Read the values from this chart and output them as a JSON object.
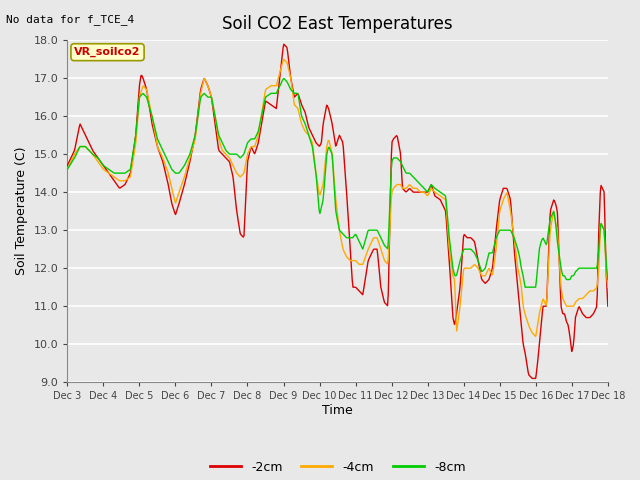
{
  "title": "Soil CO2 East Temperatures",
  "no_data_text": "No data for f_TCE_4",
  "station_label": "VR_soilco2",
  "ylabel": "Soil Temperature (C)",
  "xlabel": "Time",
  "ylim": [
    9.0,
    18.0
  ],
  "yticks": [
    9.0,
    10.0,
    11.0,
    12.0,
    13.0,
    14.0,
    15.0,
    16.0,
    17.0,
    18.0
  ],
  "xlim": [
    0,
    15
  ],
  "xtick_labels": [
    "Dec 3",
    "Dec 4",
    "Dec 5",
    "Dec 6",
    "Dec 7",
    "Dec 8",
    "Dec 9",
    "Dec 10",
    "Dec 11",
    "Dec 12",
    "Dec 13",
    "Dec 14",
    "Dec 15",
    "Dec 16",
    "Dec 17",
    "Dec 18"
  ],
  "line_colors": [
    "#dd0000",
    "#ffaa00",
    "#00cc00"
  ],
  "line_labels": [
    "-2cm",
    "-4cm",
    "-8cm"
  ],
  "background_color": "#e8e8e8",
  "grid_color": "#ffffff",
  "title_fontsize": 12,
  "label_fontsize": 9,
  "tick_fontsize": 8
}
